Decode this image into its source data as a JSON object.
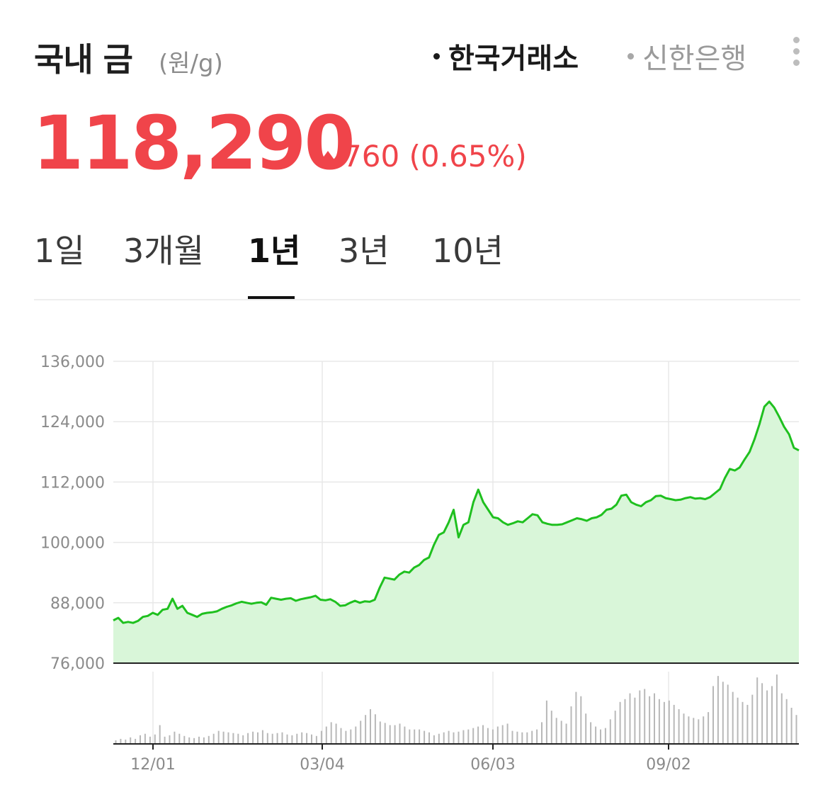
{
  "header": {
    "title": "국내 금",
    "unit": "(원/g)",
    "sources": [
      {
        "label": "한국거래소",
        "active": true
      },
      {
        "label": "신한은행",
        "active": false
      }
    ],
    "more_icon": "more-vertical-icon"
  },
  "quote": {
    "price": "118,290",
    "change": "760 (0.65%)",
    "direction": "up"
  },
  "tabs": [
    {
      "label": "1일",
      "active": false
    },
    {
      "label": "3개월",
      "active": false
    },
    {
      "label": "1년",
      "active": true
    },
    {
      "label": "3년",
      "active": false
    },
    {
      "label": "10년",
      "active": false
    }
  ],
  "colors": {
    "up": "#f0444a",
    "line": "#1fc01f",
    "area": "#d9f6d9"
  },
  "chart_data": {
    "type": "area",
    "y_ticks": [
      "136,000",
      "124,000",
      "112,000",
      "100,000",
      "88,000",
      "76,000"
    ],
    "y_tick_values": [
      136000,
      124000,
      112000,
      100000,
      88000,
      76000
    ],
    "ylim": [
      76000,
      136000
    ],
    "x_ticks": [
      "12/01",
      "03/04",
      "06/03",
      "09/02"
    ],
    "grid": true,
    "series": [
      {
        "values": [
          84500,
          85000,
          84000,
          84200,
          84000,
          84400,
          85200,
          85400,
          86000,
          85600,
          86600,
          86800,
          88800,
          86800,
          87400,
          86000,
          85600,
          85200,
          85800,
          86000,
          86100,
          86300,
          86800,
          87200,
          87500,
          87900,
          88200,
          88000,
          87800,
          88000,
          88100,
          87600,
          89000,
          88800,
          88600,
          88800,
          88900,
          88400,
          88700,
          88900,
          89100,
          89400,
          88600,
          88500,
          88700,
          88200,
          87400,
          87500,
          88000,
          88400,
          88000,
          88300,
          88200,
          88600,
          91000,
          93000,
          92800,
          92600,
          93600,
          94200,
          94000,
          95000,
          95500,
          96500,
          97000,
          99500,
          101500,
          102000,
          104000,
          106500,
          101000,
          103500,
          104000,
          108000,
          110500,
          108000,
          106500,
          105000,
          104800,
          104000,
          103500,
          103800,
          104200,
          104000,
          104800,
          105600,
          105400,
          104000,
          103700,
          103500,
          103500,
          103600,
          104000,
          104400,
          104800,
          104600,
          104300,
          104800,
          105000,
          105500,
          106500,
          106700,
          107500,
          109300,
          109500,
          108000,
          107500,
          107200,
          108000,
          108400,
          109200,
          109300,
          108800,
          108600,
          108400,
          108500,
          108800,
          109000,
          108700,
          108800,
          108600,
          109000,
          109800,
          110600,
          112800,
          114600,
          114300,
          114900,
          116500,
          118000,
          120500,
          123500,
          127000,
          128000,
          126800,
          125000,
          123000,
          121500,
          118800,
          118290
        ]
      }
    ],
    "volume": [
      5,
      7,
      6,
      9,
      7,
      12,
      14,
      10,
      13,
      26,
      10,
      12,
      17,
      14,
      11,
      9,
      8,
      10,
      9,
      11,
      14,
      18,
      17,
      16,
      15,
      14,
      12,
      15,
      17,
      16,
      19,
      15,
      14,
      15,
      16,
      13,
      12,
      14,
      16,
      15,
      13,
      11,
      18,
      24,
      30,
      28,
      22,
      18,
      20,
      24,
      32,
      40,
      48,
      41,
      31,
      29,
      26,
      26,
      28,
      24,
      20,
      20,
      20,
      18,
      16,
      12,
      14,
      16,
      18,
      16,
      17,
      19,
      20,
      22,
      24,
      26,
      22,
      20,
      24,
      26,
      28,
      18,
      17,
      16,
      16,
      18,
      20,
      30,
      60,
      46,
      36,
      32,
      28,
      52,
      72,
      66,
      42,
      30,
      24,
      20,
      22,
      34,
      46,
      58,
      62,
      70,
      64,
      74,
      76,
      66,
      70,
      62,
      58,
      60,
      54,
      48,
      42,
      38,
      36,
      34,
      38,
      44,
      80,
      94,
      86,
      82,
      72,
      64,
      58,
      54,
      68,
      92,
      84,
      74,
      80,
      96,
      70,
      62,
      50,
      40
    ]
  }
}
